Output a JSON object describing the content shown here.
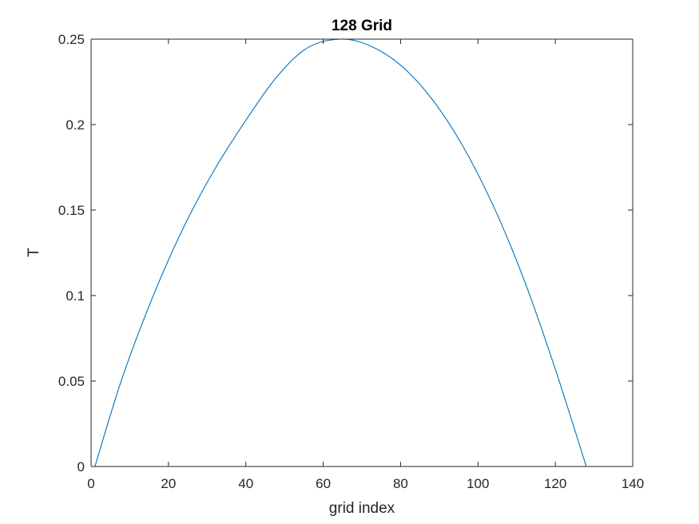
{
  "chart_data": {
    "type": "line",
    "title": "128 Grid",
    "xlabel": "grid index",
    "ylabel": "T",
    "xlim": [
      0,
      140
    ],
    "ylim": [
      0,
      0.25
    ],
    "xticks": [
      0,
      20,
      40,
      60,
      80,
      100,
      120,
      140
    ],
    "xtick_labels": [
      "0",
      "20",
      "40",
      "60",
      "80",
      "100",
      "120",
      "140"
    ],
    "yticks": [
      0,
      0.05,
      0.1,
      0.15,
      0.2,
      0.25
    ],
    "ytick_labels": [
      "0",
      "0.05",
      "0.1",
      "0.15",
      "0.2",
      "0.25"
    ],
    "grid": false,
    "series": [
      {
        "color": "#0072BD",
        "x": [
          1,
          8,
          16,
          24,
          32,
          40,
          48,
          56,
          64.5,
          72,
          80,
          88,
          96,
          104,
          112,
          120,
          128
        ],
        "y": [
          0,
          0.0515,
          0.0995,
          0.1403,
          0.174,
          0.2025,
          0.2279,
          0.245,
          0.25,
          0.2462,
          0.2348,
          0.2153,
          0.1878,
          0.1523,
          0.1087,
          0.0569,
          0
        ]
      }
    ]
  }
}
